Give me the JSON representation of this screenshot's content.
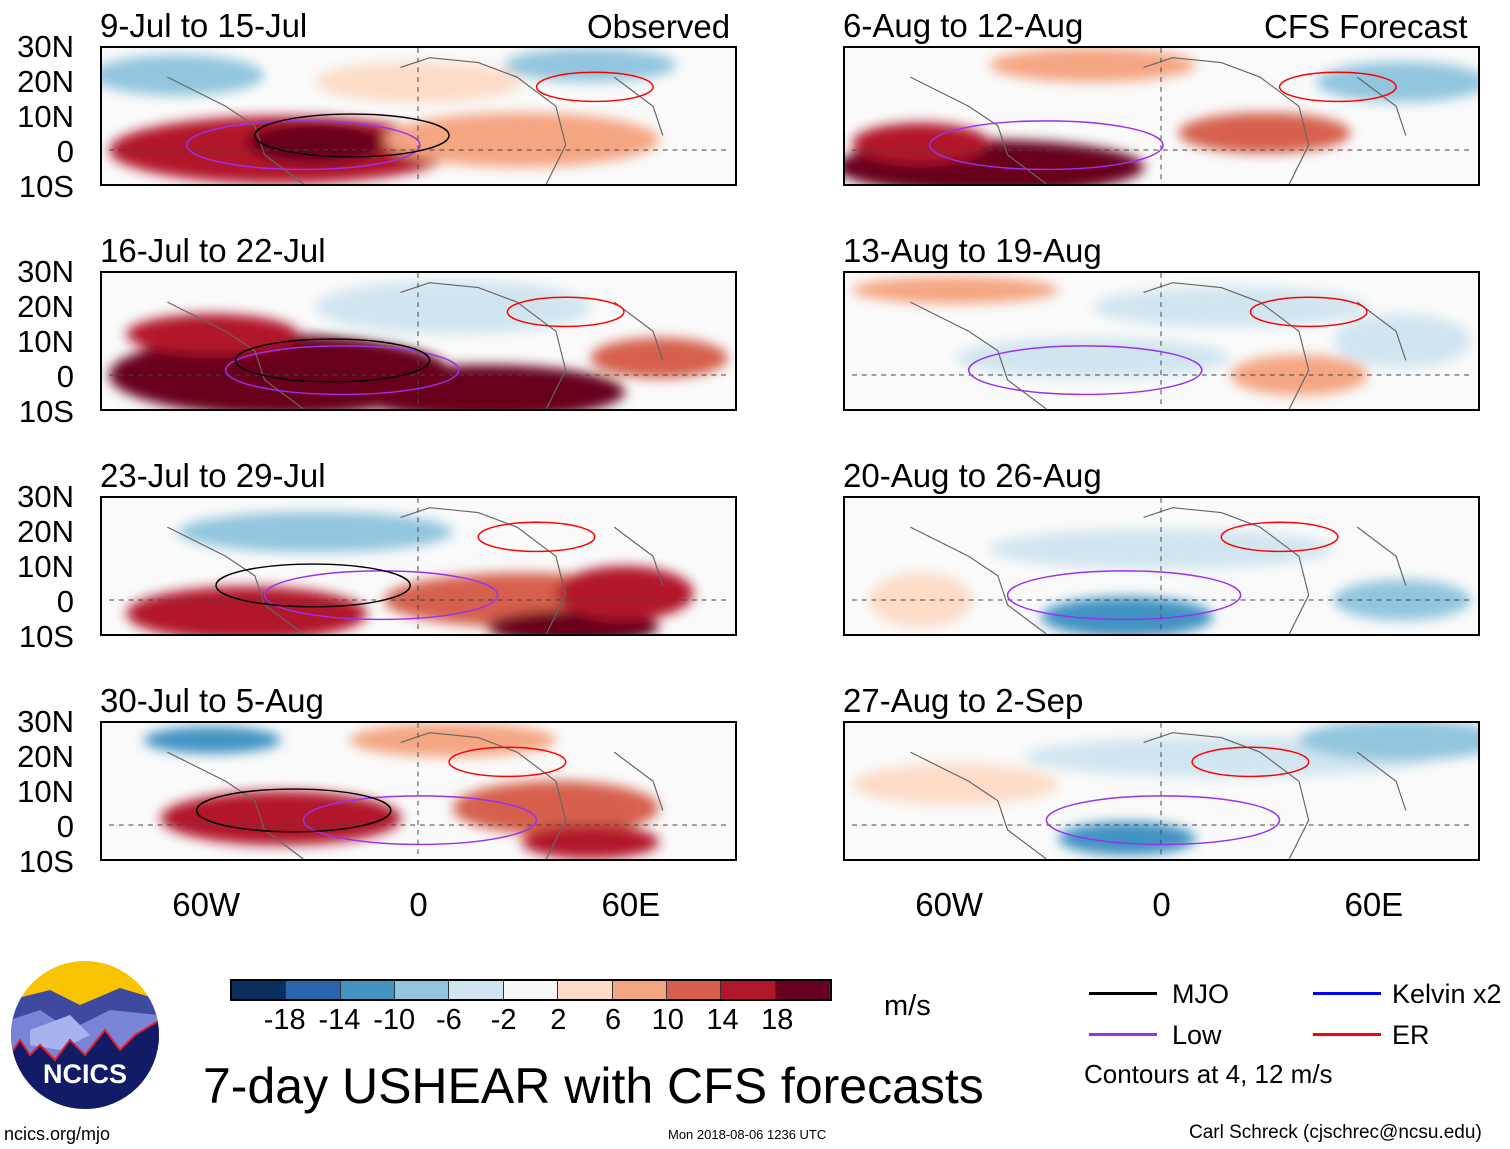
{
  "panels": {
    "observed_label": "Observed",
    "forecast_label": "CFS Forecast",
    "left": [
      "9-Jul to 15-Jul",
      "16-Jul to 22-Jul",
      "23-Jul to 29-Jul",
      "30-Jul to 5-Aug"
    ],
    "right": [
      "6-Aug to 12-Aug",
      "13-Aug to 19-Aug",
      "20-Aug to 26-Aug",
      "27-Aug to 2-Sep"
    ]
  },
  "axes": {
    "lat_labels": [
      "30N",
      "20N",
      "10N",
      "0",
      "10S"
    ],
    "lon_labels": [
      "60W",
      "0",
      "60E"
    ]
  },
  "colorbar": {
    "colors": [
      "#0a2e5e",
      "#2a65ab",
      "#4393c3",
      "#92c5de",
      "#d1e5f0",
      "#f7f7f7",
      "#fddbc7",
      "#f4a582",
      "#d6604d",
      "#b2182b",
      "#67001f"
    ],
    "labels": [
      "-18",
      "-14",
      "-10",
      "-6",
      "-2",
      "2",
      "6",
      "10",
      "14",
      "18"
    ],
    "units": "m/s"
  },
  "legend": {
    "items": [
      {
        "label": "MJO",
        "color": "#000000"
      },
      {
        "label": "Kelvin x2",
        "color": "#0000ff"
      },
      {
        "label": "Low",
        "color": "#9a30f0"
      },
      {
        "label": "ER",
        "color": "#ff0000"
      }
    ],
    "contours_note": "Contours at 4, 12 m/s"
  },
  "title": "7-day USHEAR with CFS forecasts",
  "logo_text": "NCICS",
  "footer": {
    "url": "ncics.org/mjo",
    "timestamp": "Mon 2018-08-06 1236 UTC",
    "author": "Carl Schreck (cjschrec@ncsu.edu)"
  }
}
